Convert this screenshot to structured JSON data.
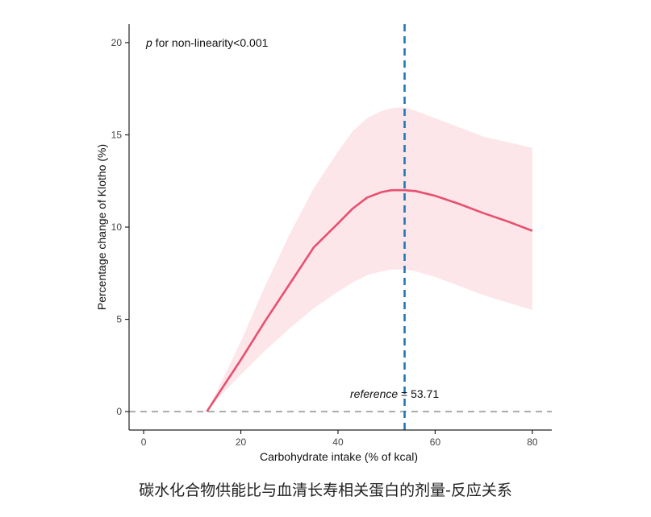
{
  "caption": "碳水化合物供能比与血清长寿相关蛋白的剂量-反应关系",
  "colors": {
    "curve": "#e8506f",
    "band": "#fde6ea",
    "reference_line": "#1f78b4",
    "zero_line": "#aaaaaa",
    "axis": "#222222",
    "text": "#111111"
  },
  "chart_data": {
    "type": "line",
    "title": "",
    "xlabel": "Carbohydrate intake (% of kcal)",
    "ylabel": "Percentage change of Klotho (%)",
    "xlim": [
      -3,
      84
    ],
    "ylim": [
      -1,
      21
    ],
    "x_ticks": [
      0,
      20,
      40,
      60,
      80
    ],
    "y_ticks": [
      0,
      5,
      10,
      15,
      20
    ],
    "annotation_p_symbol": "p",
    "annotation_p_text": " for non-linearity<0.001",
    "reference_label_italic": "reference",
    "reference_label_value": " = 53.71",
    "reference_x": 53.71,
    "zero_line_y": 0,
    "grid": false,
    "series": [
      {
        "x": [
          13,
          16,
          20,
          25,
          30,
          35,
          40,
          43,
          46,
          49,
          51,
          53.71,
          56,
          60,
          65,
          70,
          75,
          80
        ],
        "y": [
          0,
          1.2,
          2.8,
          4.9,
          6.9,
          8.9,
          10.2,
          11.0,
          11.6,
          11.9,
          12.0,
          12.0,
          11.95,
          11.7,
          11.25,
          10.75,
          10.3,
          9.8
        ],
        "lower": [
          0,
          0.9,
          2.0,
          3.3,
          4.5,
          5.6,
          6.5,
          7.0,
          7.4,
          7.6,
          7.7,
          7.7,
          7.6,
          7.3,
          6.8,
          6.3,
          5.9,
          5.5
        ],
        "upper": [
          0,
          1.6,
          3.8,
          6.8,
          9.6,
          12.1,
          14.1,
          15.2,
          15.9,
          16.3,
          16.45,
          16.5,
          16.3,
          15.9,
          15.4,
          14.9,
          14.6,
          14.3
        ]
      }
    ]
  }
}
